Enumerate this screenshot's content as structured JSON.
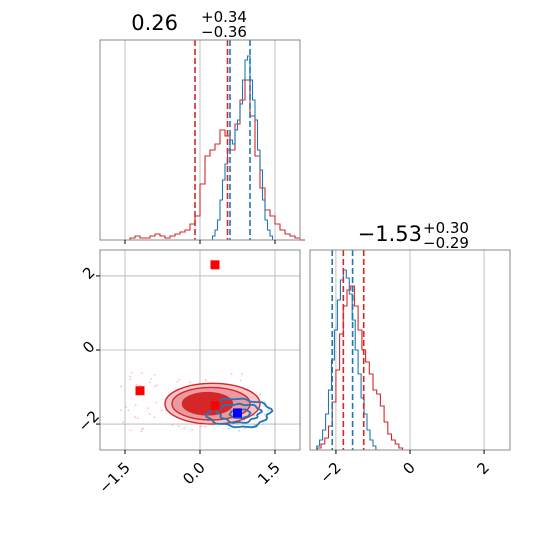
{
  "chart_data": {
    "type": "corner",
    "colors": {
      "red": "#d62728",
      "blue": "#1f77b4",
      "grid": "#b0b0b0"
    },
    "parameters": [
      {
        "title": {
          "median": "0.26",
          "plus": "+0.34",
          "minus": "−0.36"
        },
        "range": [
          -2.0,
          2.0
        ],
        "ticks": [
          {
            "v": -1.5,
            "label": "−1.5"
          },
          {
            "v": 0.0,
            "label": "0.0"
          },
          {
            "v": 1.5,
            "label": "1.5"
          }
        ],
        "quantiles_red": [
          -0.1,
          0.55
        ],
        "quantiles_blue": [
          0.6,
          1.0
        ],
        "hist_red": {
          "edges_from": -2.0,
          "bin_width": 0.1,
          "values": [
            0,
            0,
            0,
            0,
            0,
            0,
            1,
            2,
            1,
            1,
            2,
            3,
            2,
            1,
            2,
            3,
            4,
            5,
            8,
            12,
            28,
            42,
            45,
            48,
            55,
            52,
            45,
            58,
            70,
            80,
            62,
            42,
            26,
            15,
            12,
            8,
            5,
            3,
            2,
            1,
            0
          ]
        },
        "hist_blue": {
          "edges_from": 0.2,
          "bin_width": 0.05,
          "values": [
            0,
            2,
            5,
            10,
            20,
            30,
            38,
            45,
            50,
            48,
            55,
            60,
            68,
            80,
            90,
            92,
            80,
            70,
            60,
            45,
            35,
            20,
            10,
            5,
            2,
            0
          ]
        }
      },
      {
        "title": {
          "median": "−1.53",
          "plus": "+0.30",
          "minus": "−0.29"
        },
        "range": [
          -2.7,
          2.7
        ],
        "ticks": [
          {
            "v": -2,
            "label": "−2"
          },
          {
            "v": 0,
            "label": "0"
          },
          {
            "v": 2,
            "label": "2"
          }
        ],
        "quantiles_red": [
          -1.8,
          -1.25
        ],
        "quantiles_blue": [
          -2.1,
          -1.55
        ],
        "hist_red": {
          "edges_from": -2.6,
          "bin_width": 0.1,
          "values": [
            0,
            1,
            3,
            6,
            12,
            24,
            40,
            58,
            72,
            80,
            82,
            72,
            60,
            50,
            44,
            38,
            30,
            28,
            22,
            14,
            8,
            5,
            3,
            1,
            0
          ]
        },
        "hist_blue": {
          "edges_from": -2.6,
          "bin_width": 0.08,
          "values": [
            0,
            2,
            5,
            10,
            18,
            30,
            45,
            60,
            75,
            85,
            90,
            86,
            78,
            65,
            50,
            38,
            26,
            18,
            10,
            5,
            2,
            0
          ]
        }
      }
    ],
    "points": {
      "red_squares": [
        {
          "x": 0.3,
          "y": 2.3
        },
        {
          "x": -1.2,
          "y": -1.1
        },
        {
          "x": 0.3,
          "y": -1.5
        }
      ],
      "blue_squares": [
        {
          "x": 0.75,
          "y": -1.7
        }
      ]
    }
  }
}
